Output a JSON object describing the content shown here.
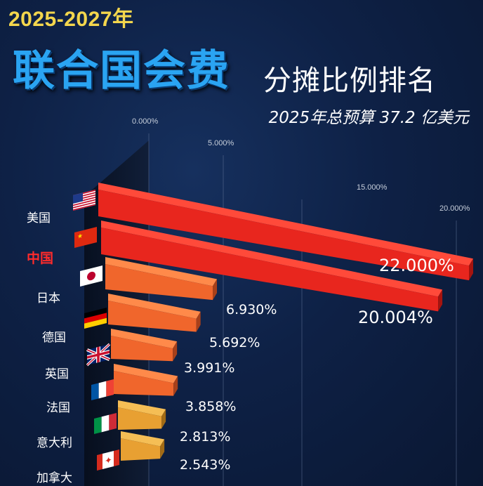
{
  "header": {
    "years": "2025-2027年",
    "title_main": "联合国会费",
    "title_sub": "分摊比例排名",
    "budget": "2025年总预算 37.2 亿美元"
  },
  "chart_data": {
    "type": "bar",
    "orientation": "horizontal",
    "title": "2025-2027年联合国会费分摊比例排名",
    "subtitle": "2025年总预算 37.2 亿美元",
    "xlabel": "",
    "ylabel": "",
    "xlim": [
      0,
      20
    ],
    "axis_ticks": [
      "0.000%",
      "5.000%",
      "15.000%",
      "20.000%"
    ],
    "categories": [
      "美国",
      "中国",
      "日本",
      "德国",
      "英国",
      "法国",
      "意大利",
      "加拿大"
    ],
    "values": [
      22.0,
      20.004,
      6.93,
      5.692,
      3.991,
      3.858,
      2.813,
      2.543
    ],
    "value_labels": [
      "22.000%",
      "20.004%",
      "6.930%",
      "5.692%",
      "3.991%",
      "3.858%",
      "2.813%",
      "2.543%"
    ],
    "highlight": "中国",
    "colors": {
      "bar_top_rank": "#e8261e",
      "bar_mid_rank": "#f0662c",
      "bar_low_rank": "#e8a032",
      "highlight_label": "#ff2b2b",
      "title_blue": "#2aa4f2",
      "years_yellow": "#f3d64d"
    },
    "flag_icons": [
      "us-flag-icon",
      "china-flag-icon",
      "japan-flag-icon",
      "germany-flag-icon",
      "uk-flag-icon",
      "france-flag-icon",
      "italy-flag-icon",
      "canada-flag-icon"
    ]
  }
}
